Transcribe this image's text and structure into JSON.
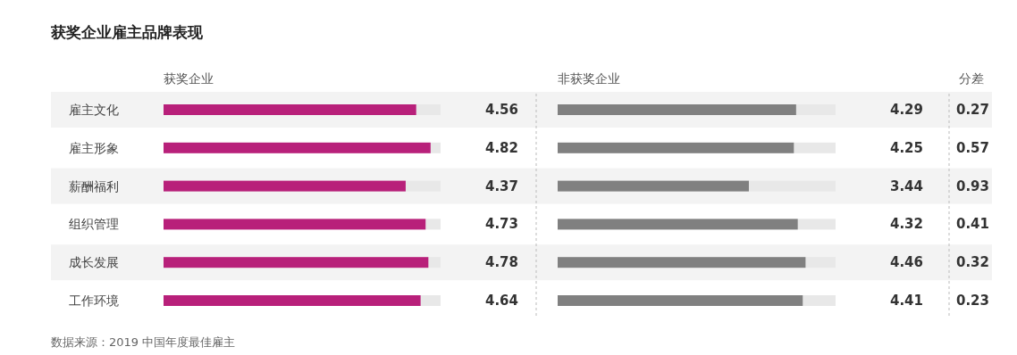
{
  "chart_data": [
    {
      "type": "bar",
      "orientation": "horizontal",
      "title": "获奖企业雇主品牌表现",
      "subtitle": "获奖企业",
      "categories": [
        "雇主文化",
        "雇主形象",
        "薪酬福利",
        "组织管理",
        "成长发展",
        "工作环境"
      ],
      "values": [
        4.56,
        4.82,
        4.37,
        4.73,
        4.78,
        4.64
      ],
      "color": "#b8207a",
      "xlim": [
        0,
        5
      ],
      "data_labels": true,
      "annotations": [
        "数据来源：2019 中国年度最佳雇主"
      ]
    },
    {
      "type": "bar",
      "orientation": "horizontal",
      "subtitle": "非获奖企业",
      "categories": [
        null,
        null,
        null,
        null,
        null,
        null
      ],
      "values": [
        4.29,
        4.25,
        3.44,
        4.32,
        4.46,
        4.41
      ],
      "color": "#808080",
      "xlim": [
        0,
        5
      ],
      "data_labels": true
    },
    {
      "type": "other",
      "subtitle": "分差",
      "categories": [
        null,
        null,
        null,
        null,
        null,
        null
      ],
      "values": [
        0.27,
        0.57,
        0.93,
        0.41,
        0.32,
        0.23
      ],
      "data_labels": true
    }
  ]
}
